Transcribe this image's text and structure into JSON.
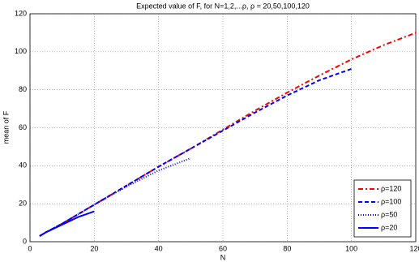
{
  "chart_data": {
    "type": "line",
    "title": "Expected value of F, for N=1,2,...ρ,    ρ = 20,50,100,120",
    "x_label": "N",
    "y_label": "mean of F",
    "x": [
      3,
      5,
      10,
      15,
      20,
      30,
      40,
      50,
      60,
      70,
      80,
      90,
      100,
      110,
      120
    ],
    "series": [
      {
        "name": "ρ=120",
        "color": "#ff0000",
        "dash": "6 3 2 3",
        "values": [
          3,
          5,
          9.5,
          14.5,
          19.5,
          29.5,
          39.5,
          49,
          59,
          69,
          78.5,
          87.5,
          96,
          103.5,
          110
        ]
      },
      {
        "name": "ρ=100",
        "color": "#0000ff",
        "dash": "5 3",
        "values": [
          3,
          5,
          9.5,
          14.5,
          19.5,
          29.5,
          39.5,
          49,
          58.5,
          68,
          77,
          85,
          91,
          null,
          null
        ]
      },
      {
        "name": "ρ=50",
        "color": "#0000ff",
        "dash": "1 2",
        "values": [
          3,
          5,
          9.5,
          14.5,
          19.5,
          29,
          37.5,
          44,
          null,
          null,
          null,
          null,
          null,
          null,
          null
        ]
      },
      {
        "name": "ρ=20",
        "color": "#0000ff",
        "dash": "",
        "values": [
          3,
          5,
          9,
          13,
          16,
          null,
          null,
          null,
          null,
          null,
          null,
          null,
          null,
          null,
          null
        ]
      }
    ],
    "xlim": [
      0,
      120
    ],
    "ylim": [
      0,
      120
    ],
    "xticks": [
      0,
      20,
      40,
      60,
      80,
      100,
      120
    ],
    "yticks": [
      0,
      20,
      40,
      60,
      80,
      100,
      120
    ],
    "grid": true,
    "legend": "lower right"
  }
}
